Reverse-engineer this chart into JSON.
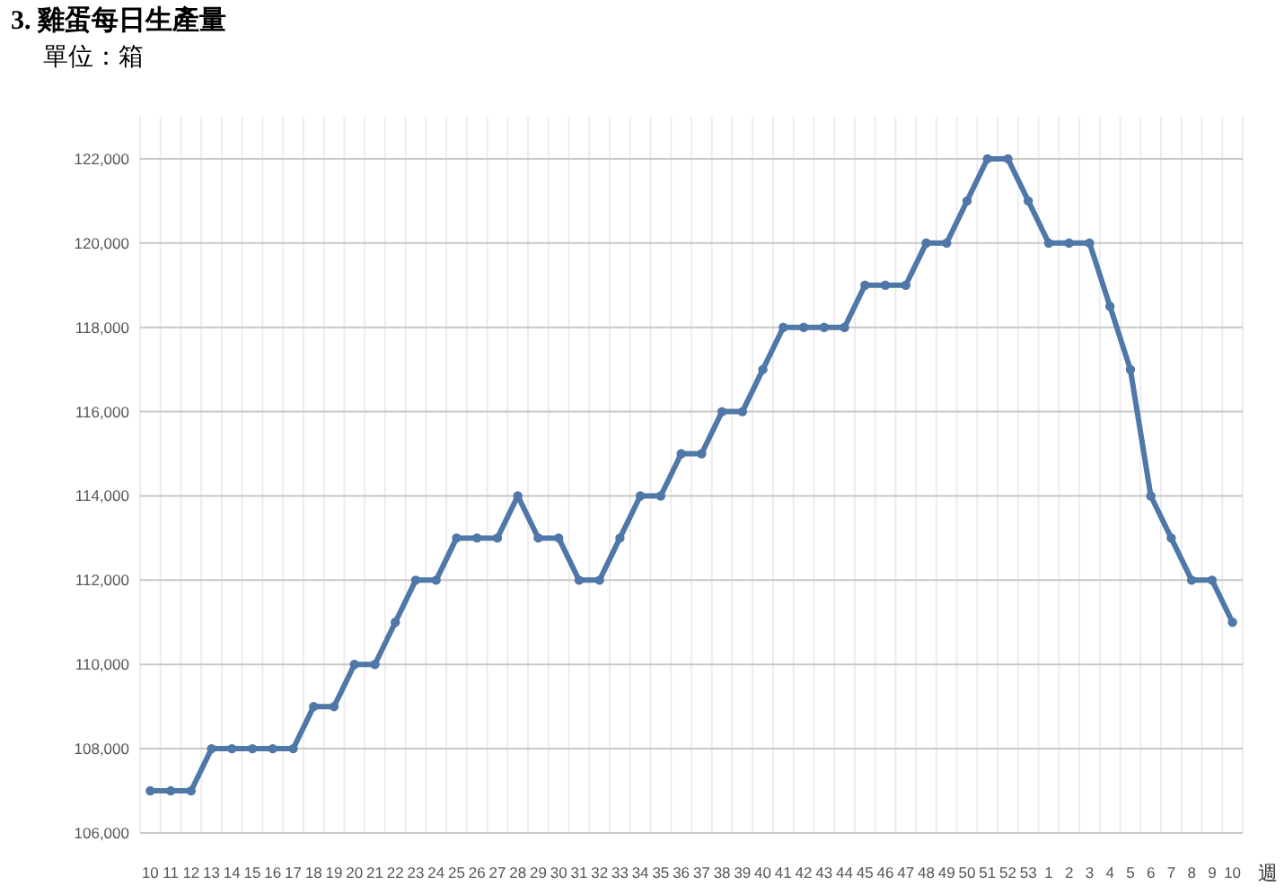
{
  "chart_data": {
    "type": "line",
    "title": "3. 雞蛋每日生產量",
    "subtitle": "單位：箱",
    "xlabel": "週",
    "categories": [
      "10",
      "11",
      "12",
      "13",
      "14",
      "15",
      "16",
      "17",
      "18",
      "19",
      "20",
      "21",
      "22",
      "23",
      "24",
      "25",
      "26",
      "27",
      "28",
      "29",
      "30",
      "31",
      "32",
      "33",
      "34",
      "35",
      "36",
      "37",
      "38",
      "39",
      "40",
      "41",
      "42",
      "43",
      "44",
      "45",
      "46",
      "47",
      "48",
      "49",
      "50",
      "51",
      "52",
      "53",
      "1",
      "2",
      "3",
      "4",
      "5",
      "6",
      "7",
      "8",
      "9",
      "10"
    ],
    "values": [
      107000,
      107000,
      107000,
      108000,
      108000,
      108000,
      108000,
      108000,
      109000,
      109000,
      110000,
      110000,
      111000,
      112000,
      112000,
      113000,
      113000,
      113000,
      114000,
      113000,
      113000,
      112000,
      112000,
      113000,
      114000,
      114000,
      115000,
      115000,
      116000,
      116000,
      117000,
      118000,
      118000,
      118000,
      118000,
      119000,
      119000,
      119000,
      120000,
      120000,
      121000,
      122000,
      122000,
      121000,
      120000,
      120000,
      120000,
      118500,
      117000,
      114000,
      113000,
      112000,
      112000,
      111000
    ],
    "color": "#4f77a8",
    "ylim": [
      106000,
      123000
    ],
    "yticks": [
      {
        "value": 106000,
        "label": "106,000"
      },
      {
        "value": 108000,
        "label": "108,000"
      },
      {
        "value": 110000,
        "label": "110,000"
      },
      {
        "value": 112000,
        "label": "112,000"
      },
      {
        "value": 114000,
        "label": "114,000"
      },
      {
        "value": 116000,
        "label": "116,000"
      },
      {
        "value": 118000,
        "label": "118,000"
      },
      {
        "value": 120000,
        "label": "120,000"
      },
      {
        "value": 122000,
        "label": "122,000"
      }
    ],
    "grid": true,
    "marker": "circle",
    "line_style": "solid"
  }
}
